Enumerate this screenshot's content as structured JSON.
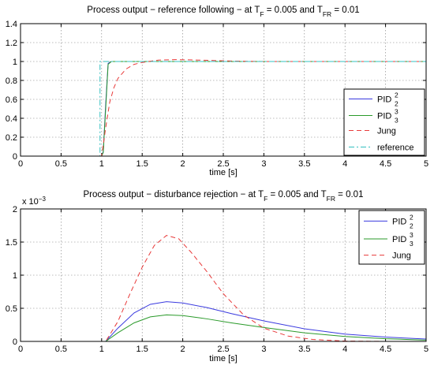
{
  "chart_data": [
    {
      "type": "line",
      "title": {
        "prefix": "Process output − reference following − at T",
        "sub1": "F",
        "mid": " = 0.005 and T",
        "sub2": "FR",
        "suffix": " = 0.01"
      },
      "xlabel": "time [s]",
      "xlim": [
        0,
        5
      ],
      "ylim": [
        0,
        1.4
      ],
      "xticks": [
        "0",
        "0.5",
        "1",
        "1.5",
        "2",
        "2.5",
        "3",
        "3.5",
        "4",
        "4.5",
        "5"
      ],
      "yticks": [
        "0",
        "0.2",
        "0.4",
        "0.6",
        "0.8",
        "1",
        "1.2",
        "1.4"
      ],
      "grid": true,
      "legend_position": "bottom-right",
      "series": [
        {
          "name": {
            "base": "PID",
            "sup": "2",
            "sub": "2"
          },
          "color": "#3a3adf",
          "dash": "solid",
          "x": [
            0,
            1.0,
            1.02,
            1.05,
            1.08,
            1.12,
            5
          ],
          "y": [
            0,
            0,
            0.05,
            0.55,
            0.98,
            1.0,
            1.0
          ]
        },
        {
          "name": {
            "base": "PID",
            "sup": "3",
            "sub": "3"
          },
          "color": "#2a9a2a",
          "dash": "solid",
          "x": [
            0,
            1.0,
            1.02,
            1.05,
            1.08,
            1.12,
            5
          ],
          "y": [
            0,
            0,
            0.04,
            0.5,
            0.97,
            1.0,
            1.0
          ]
        },
        {
          "name": {
            "base": "Jung"
          },
          "color": "#e83a3a",
          "dash": "dashed",
          "x": [
            0,
            1.0,
            1.05,
            1.1,
            1.15,
            1.2,
            1.3,
            1.4,
            1.5,
            1.7,
            1.9,
            2.2,
            2.6,
            3.0,
            5
          ],
          "y": [
            0,
            0,
            0.3,
            0.57,
            0.72,
            0.82,
            0.92,
            0.97,
            0.99,
            1.015,
            1.02,
            1.015,
            1.005,
            1.0,
            1.0
          ]
        },
        {
          "name": {
            "base": "reference"
          },
          "color": "#33c0c0",
          "dash": "dashdot",
          "x": [
            0,
            0.98,
            0.98,
            5
          ],
          "y": [
            0,
            0,
            1,
            1
          ]
        }
      ]
    },
    {
      "type": "line",
      "title": {
        "prefix": "Process output − disturbance rejection − at T",
        "sub1": "F",
        "mid": " = 0.005 and T",
        "sub2": "FR",
        "suffix": " = 0.01"
      },
      "xlabel": "time [s]",
      "xlim": [
        0,
        5
      ],
      "ylim": [
        0,
        2
      ],
      "y_exponent": "x 10",
      "y_exponent_power": "−3",
      "xticks": [
        "0",
        "0.5",
        "1",
        "1.5",
        "2",
        "2.5",
        "3",
        "3.5",
        "4",
        "4.5",
        "5"
      ],
      "yticks": [
        "0",
        "0.5",
        "1",
        "1.5",
        "2"
      ],
      "grid": true,
      "legend_position": "top-right",
      "series": [
        {
          "name": {
            "base": "PID",
            "sup": "2",
            "sub": "2"
          },
          "color": "#3a3adf",
          "dash": "solid",
          "x": [
            0,
            1.05,
            1.2,
            1.4,
            1.6,
            1.8,
            2.0,
            2.3,
            2.6,
            3.0,
            3.5,
            4.0,
            4.5,
            5.0
          ],
          "y": [
            0,
            0,
            0.2,
            0.43,
            0.56,
            0.6,
            0.58,
            0.51,
            0.42,
            0.31,
            0.19,
            0.11,
            0.065,
            0.035
          ]
        },
        {
          "name": {
            "base": "PID",
            "sup": "3",
            "sub": "3"
          },
          "color": "#2a9a2a",
          "dash": "solid",
          "x": [
            0,
            1.05,
            1.2,
            1.4,
            1.6,
            1.8,
            2.0,
            2.3,
            2.6,
            3.0,
            3.5,
            4.0,
            4.5,
            5.0
          ],
          "y": [
            0,
            0,
            0.13,
            0.28,
            0.37,
            0.4,
            0.39,
            0.34,
            0.28,
            0.21,
            0.13,
            0.075,
            0.04,
            0.02
          ]
        },
        {
          "name": {
            "base": "Jung"
          },
          "color": "#e83a3a",
          "dash": "dashed",
          "x": [
            0,
            1.05,
            1.2,
            1.35,
            1.5,
            1.65,
            1.8,
            1.95,
            2.1,
            2.3,
            2.5,
            2.75,
            3.0,
            3.3,
            3.6,
            4.0,
            4.5,
            5.0
          ],
          "y": [
            0,
            0,
            0.3,
            0.72,
            1.12,
            1.45,
            1.6,
            1.55,
            1.35,
            1.05,
            0.72,
            0.4,
            0.2,
            0.08,
            0.03,
            0.005,
            0,
            0
          ]
        }
      ]
    }
  ]
}
